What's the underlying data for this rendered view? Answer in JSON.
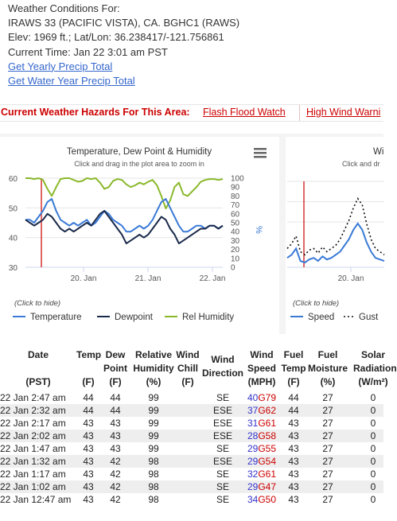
{
  "info": {
    "heading": "Weather Conditions For:",
    "station": "IRAWS 33 (PACIFIC VISTA), CA. BGHC1 (RAWS)",
    "elev": "Elev: 1969 ft.; Lat/Lon: 36.238417/-121.756861",
    "time": "Current Time: Jan 22 3:01 am PST",
    "link_yearly": "Get Yearly Precip Total",
    "link_water": "Get Water Year Precip Total"
  },
  "hazards": {
    "label": "Current Weather Hazards For This Area:",
    "items": [
      "Flash Flood Watch",
      "High Wind Warni"
    ]
  },
  "chart1": {
    "title": "Temperature, Dew Point & Humidity",
    "subtitle": "Click and drag in the plot area to zoom in",
    "hide_hint": "(Click to hide)",
    "y_left_ticks": [
      "60",
      "50",
      "40",
      "30"
    ],
    "y_right_ticks": [
      "100",
      "90",
      "80",
      "70",
      "60",
      "50",
      "40",
      "30",
      "20",
      "10",
      "0"
    ],
    "y_right_label": "%",
    "x_ticks": [
      "20. Jan",
      "21. Jan",
      "22. Jan"
    ],
    "legend": [
      "Temperature",
      "Dewpoint",
      "Rel Humidity"
    ],
    "colors": {
      "temperature": "#3a7ad6",
      "dewpoint": "#1a2a4a",
      "humidity": "#8ab82b",
      "marker": "#cc0000"
    }
  },
  "chart2": {
    "title": "Wi",
    "subtitle": "Click and dr",
    "hide_hint": "(Click to hide)",
    "x_ticks": [
      "20. Jan"
    ],
    "legend": [
      "Speed",
      "Gust"
    ],
    "colors": {
      "speed": "#3a7ad6",
      "gust": "#111111",
      "marker": "#cc0000"
    }
  },
  "chart_data": [
    {
      "type": "line",
      "title": "Temperature, Dew Point & Humidity",
      "x_ticks": [
        "20. Jan",
        "21. Jan",
        "22. Jan"
      ],
      "ylim_left": [
        30,
        60
      ],
      "ylim_right": [
        0,
        100
      ],
      "series": [
        {
          "name": "Temperature",
          "axis": "left",
          "values": [
            46,
            46,
            45,
            47,
            49,
            52,
            53,
            49,
            46,
            45,
            44,
            45,
            44,
            45,
            46,
            44,
            45,
            47,
            49,
            48,
            46,
            45,
            44,
            42,
            42,
            43,
            44,
            43,
            44,
            46,
            49,
            52,
            53,
            50,
            47,
            44,
            42,
            42,
            43,
            44,
            44,
            43,
            44,
            44,
            43,
            44
          ]
        },
        {
          "name": "Dewpoint",
          "axis": "left",
          "values": [
            46,
            45,
            44,
            45,
            46,
            48,
            47,
            45,
            43,
            42,
            43,
            42,
            43,
            44,
            45,
            44,
            46,
            48,
            49,
            47,
            45,
            43,
            41,
            38,
            39,
            40,
            41,
            40,
            41,
            43,
            45,
            47,
            46,
            43,
            41,
            38,
            39,
            40,
            41,
            42,
            43,
            43,
            44,
            44,
            43,
            44
          ]
        },
        {
          "name": "Rel Humidity",
          "axis": "right",
          "values": [
            100,
            100,
            99,
            100,
            98,
            88,
            80,
            90,
            99,
            100,
            100,
            98,
            96,
            97,
            100,
            99,
            100,
            95,
            88,
            90,
            97,
            99,
            98,
            93,
            90,
            92,
            95,
            93,
            96,
            98,
            92,
            80,
            66,
            75,
            90,
            95,
            82,
            80,
            85,
            90,
            96,
            98,
            99,
            99,
            98,
            99
          ]
        }
      ]
    },
    {
      "type": "line",
      "title": "Wi",
      "x_ticks": [
        "20. Jan"
      ],
      "series": [
        {
          "name": "Speed",
          "values": [
            6,
            8,
            12,
            4,
            3,
            5,
            6,
            4,
            7,
            5,
            6,
            8,
            10,
            14,
            18,
            24,
            28,
            24,
            16,
            10,
            6,
            5,
            4
          ]
        },
        {
          "name": "Gust",
          "values": [
            12,
            15,
            20,
            10,
            8,
            11,
            12,
            9,
            13,
            10,
            12,
            14,
            18,
            24,
            30,
            38,
            44,
            40,
            28,
            18,
            12,
            10,
            8
          ]
        }
      ]
    }
  ],
  "table": {
    "headers": [
      "Date\n\n(PST)",
      "Temp\n\n(F)",
      "Dew\nPoint\n(F)",
      "Relative\nHumidity\n(%)",
      "Wind\nChill\n(F)",
      "Wind\nDirection",
      "Wind\nSpeed\n(MPH)",
      "Fuel\nTemp\n(F)",
      "Fuel\nMoisture\n(%)",
      "Solar\nRadiation\n(W/m²)"
    ],
    "rows": [
      {
        "date": "22 Jan 2:47 am",
        "temp": "44",
        "dew": "44",
        "rh": "99",
        "chill": "",
        "dir": "SE",
        "spd": "40",
        "gust": "G79",
        "ftemp": "44",
        "fmoist": "27",
        "solar": "0"
      },
      {
        "date": "22 Jan 2:32 am",
        "temp": "44",
        "dew": "44",
        "rh": "99",
        "chill": "",
        "dir": "ESE",
        "spd": "37",
        "gust": "G62",
        "ftemp": "44",
        "fmoist": "27",
        "solar": "0"
      },
      {
        "date": "22 Jan 2:17 am",
        "temp": "43",
        "dew": "43",
        "rh": "99",
        "chill": "",
        "dir": "ESE",
        "spd": "31",
        "gust": "G61",
        "ftemp": "43",
        "fmoist": "27",
        "solar": "0"
      },
      {
        "date": "22 Jan 2:02 am",
        "temp": "43",
        "dew": "43",
        "rh": "99",
        "chill": "",
        "dir": "ESE",
        "spd": "28",
        "gust": "G58",
        "ftemp": "43",
        "fmoist": "27",
        "solar": "0"
      },
      {
        "date": "22 Jan 1:47 am",
        "temp": "43",
        "dew": "43",
        "rh": "99",
        "chill": "",
        "dir": "SE",
        "spd": "29",
        "gust": "G55",
        "ftemp": "43",
        "fmoist": "27",
        "solar": "0"
      },
      {
        "date": "22 Jan 1:32 am",
        "temp": "43",
        "dew": "42",
        "rh": "98",
        "chill": "",
        "dir": "ESE",
        "spd": "29",
        "gust": "G54",
        "ftemp": "43",
        "fmoist": "27",
        "solar": "0"
      },
      {
        "date": "22 Jan 1:17 am",
        "temp": "43",
        "dew": "42",
        "rh": "98",
        "chill": "",
        "dir": "SE",
        "spd": "32",
        "gust": "G61",
        "ftemp": "43",
        "fmoist": "27",
        "solar": "0"
      },
      {
        "date": "22 Jan 1:02 am",
        "temp": "43",
        "dew": "42",
        "rh": "98",
        "chill": "",
        "dir": "SE",
        "spd": "29",
        "gust": "G47",
        "ftemp": "43",
        "fmoist": "27",
        "solar": "0"
      },
      {
        "date": "22 Jan 12:47 am",
        "temp": "43",
        "dew": "42",
        "rh": "98",
        "chill": "",
        "dir": "SE",
        "spd": "34",
        "gust": "G50",
        "ftemp": "43",
        "fmoist": "27",
        "solar": "0"
      }
    ]
  }
}
